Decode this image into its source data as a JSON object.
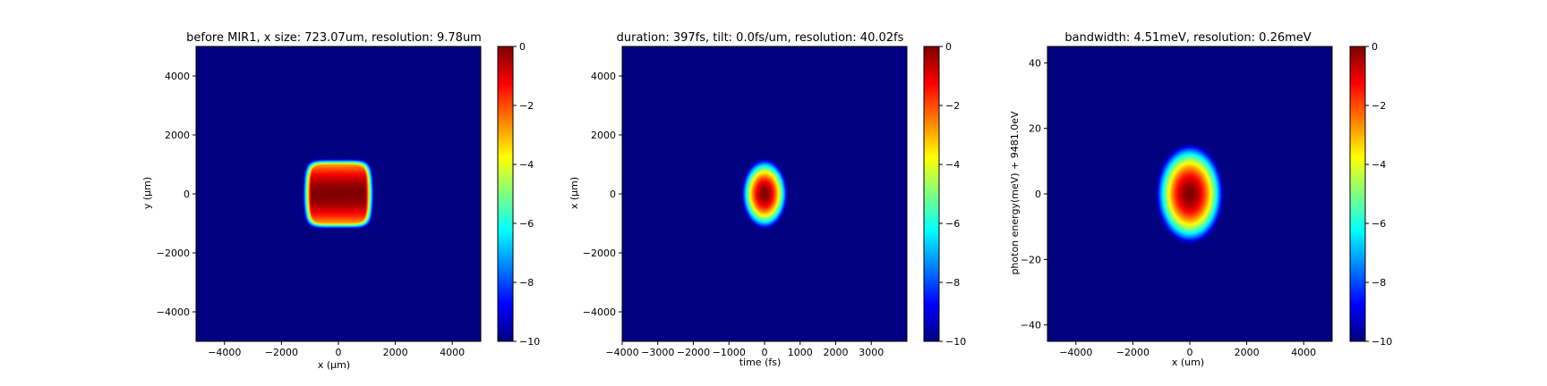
{
  "chart_data": [
    {
      "type": "heatmap",
      "title": "before MIR1, x size: 723.07um, resolution: 9.78um",
      "xlabel": "x (μm)",
      "ylabel": "y (μm)",
      "xlim": [
        -5000,
        5000
      ],
      "ylim": [
        -5000,
        5000
      ],
      "xticks": [
        -4000,
        -2000,
        0,
        2000,
        4000
      ],
      "yticks": [
        -4000,
        -2000,
        0,
        2000,
        4000
      ],
      "xtick_labels": [
        "−4000",
        "−2000",
        "0",
        "2000",
        "4000"
      ],
      "ytick_labels": [
        "−4000",
        "−2000",
        "0",
        "2000",
        "4000"
      ],
      "colormap": "jet",
      "clim": [
        -10,
        0
      ],
      "colorbar_ticks": [
        0,
        -2,
        -4,
        -6,
        -8,
        -10
      ],
      "colorbar_tick_labels": [
        "0",
        "−2",
        "−4",
        "−6",
        "−8",
        "−10"
      ],
      "blob": {
        "shape": "superellipse",
        "center": [
          0,
          0
        ],
        "x_half_width": 1200,
        "y_half_width": 1250,
        "peak": 0,
        "floor": -10
      }
    },
    {
      "type": "heatmap",
      "title": "duration: 397fs, tilt: 0.0fs/um, resolution: 40.02fs",
      "xlabel": "time (fs)",
      "ylabel": "x (μm)",
      "xlim": [
        -4000,
        4000
      ],
      "ylim": [
        -5000,
        5000
      ],
      "xticks": [
        -4000,
        -3000,
        -2000,
        -1000,
        0,
        1000,
        2000,
        3000
      ],
      "yticks": [
        -4000,
        -2000,
        0,
        2000,
        4000
      ],
      "xtick_labels": [
        "−4000",
        "−3000",
        "−2000",
        "−1000",
        "0",
        "1000",
        "2000",
        "3000"
      ],
      "ytick_labels": [
        "−4000",
        "−2000",
        "0",
        "2000",
        "4000"
      ],
      "colormap": "jet",
      "clim": [
        -10,
        0
      ],
      "colorbar_ticks": [
        0,
        -2,
        -4,
        -6,
        -8,
        -10
      ],
      "colorbar_tick_labels": [
        "0",
        "−2",
        "−4",
        "−6",
        "−8",
        "−10"
      ],
      "blob": {
        "shape": "gaussian",
        "center": [
          0,
          0
        ],
        "x_half_width": 680,
        "y_half_width": 1250,
        "peak": 0,
        "floor": -10
      }
    },
    {
      "type": "heatmap",
      "title": "bandwidth: 4.51meV, resolution: 0.26meV",
      "xlabel": "x (um)",
      "ylabel": "photon energy(meV) + 9481.0eV",
      "xlim": [
        -5000,
        5000
      ],
      "ylim": [
        -45,
        45
      ],
      "xticks": [
        -4000,
        -2000,
        0,
        2000,
        4000
      ],
      "yticks": [
        -40,
        -20,
        0,
        20,
        40
      ],
      "xtick_labels": [
        "−4000",
        "−2000",
        "0",
        "2000",
        "4000"
      ],
      "ytick_labels": [
        "−40",
        "−20",
        "0",
        "20",
        "40"
      ],
      "colormap": "jet",
      "clim": [
        -10,
        0
      ],
      "colorbar_ticks": [
        0,
        -2,
        -4,
        -6,
        -8,
        -10
      ],
      "colorbar_tick_labels": [
        "0",
        "−2",
        "−4",
        "−6",
        "−8",
        "−10"
      ],
      "blob": {
        "shape": "gaussian",
        "center": [
          0,
          0
        ],
        "x_half_width": 1250,
        "y_half_width": 16,
        "peak": 0,
        "floor": -10
      }
    }
  ]
}
